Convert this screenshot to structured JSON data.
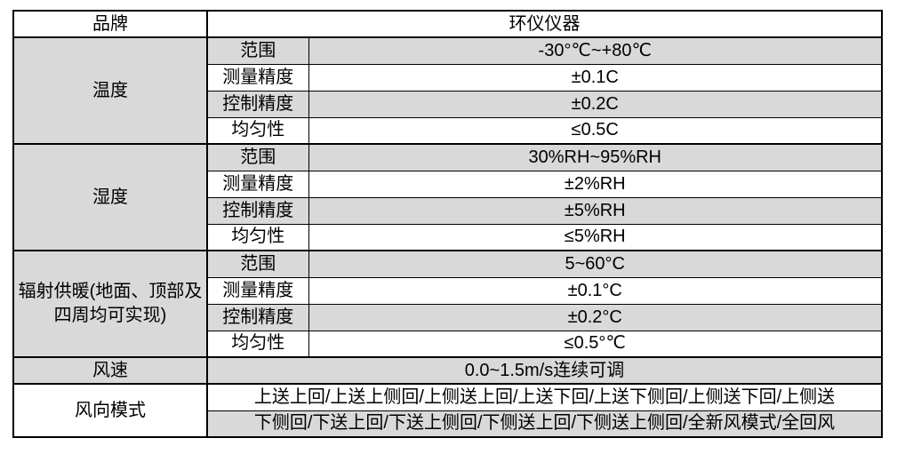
{
  "colors": {
    "row_shade": "#d9d9d9",
    "border": "#000000",
    "text": "#000000",
    "page_background": "#ffffff"
  },
  "table": {
    "brand": {
      "label": "品牌",
      "value": "环仪仪器"
    },
    "sections": [
      {
        "name": "温度",
        "rows": [
          {
            "label": "范围",
            "value": "-30°℃~+80℃"
          },
          {
            "label": "测量精度",
            "value": "±0.1C"
          },
          {
            "label": "控制精度",
            "value": "±0.2C"
          },
          {
            "label": "均匀性",
            "value": "≤0.5C"
          }
        ]
      },
      {
        "name": "湿度",
        "rows": [
          {
            "label": "范围",
            "value": "30%RH~95%RH"
          },
          {
            "label": "测量精度",
            "value": "±2%RH"
          },
          {
            "label": "控制精度",
            "value": "±5%RH"
          },
          {
            "label": "均匀性",
            "value": "≤5%RH"
          }
        ]
      },
      {
        "name": "辐射供暖(地面、顶部及四周均可实现)",
        "rows": [
          {
            "label": "范围",
            "value": "5~60°C"
          },
          {
            "label": "测量精度",
            "value": "±0.1°C"
          },
          {
            "label": "控制精度",
            "value": "±0.2°C"
          },
          {
            "label": "均匀性",
            "value": "≤0.5°℃"
          }
        ]
      }
    ],
    "wind_speed": {
      "label": "风速",
      "value": "0.0~1.5m/s连续可调"
    },
    "wind_mode": {
      "label": "风向模式",
      "lines": [
        "上送上回/上送上侧回/上侧送上回/上送下回/上送下侧回/上侧送下回/上侧送",
        "下侧回/下送上回/下送上侧回/下侧送上回/下侧送上侧回/全新风模式/全回风"
      ]
    }
  }
}
